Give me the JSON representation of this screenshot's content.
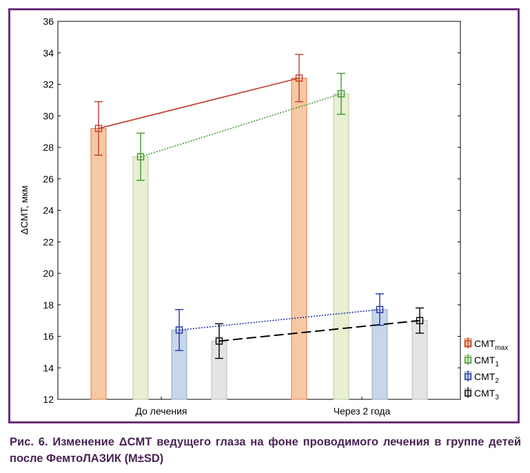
{
  "chart_data": {
    "type": "bar",
    "ylabel": "ΔCMT, мкм",
    "ylim": [
      12,
      36
    ],
    "yticks": [
      12,
      14,
      16,
      18,
      20,
      22,
      24,
      26,
      28,
      30,
      32,
      34,
      36
    ],
    "categories": [
      "До лечения",
      "Через 2 года"
    ],
    "grid": false,
    "legend_position": "right",
    "error_bars": "M±SD",
    "series": [
      {
        "name": "CMT",
        "sub": "max",
        "sub_type": "sub",
        "values": [
          29.2,
          32.4
        ],
        "sd": [
          1.7,
          1.5
        ],
        "bar_color": "#f7c8a4",
        "bar_edge": "#e07a3a",
        "marker_color": "#c0392b",
        "line_style": "solid"
      },
      {
        "name": "CMT",
        "sub": "1",
        "sub_type": "sub",
        "values": [
          27.4,
          31.4
        ],
        "sd": [
          1.5,
          1.3
        ],
        "bar_color": "#e8efd4",
        "bar_edge": "#b8c994",
        "marker_color": "#3a9a2a",
        "line_style": "dotted"
      },
      {
        "name": "CMT",
        "sub": "2",
        "sub_type": "sub",
        "values": [
          16.4,
          17.7
        ],
        "sd": [
          1.3,
          1.0
        ],
        "bar_color": "#c7d6e8",
        "bar_edge": "#8fa9c9",
        "marker_color": "#2232a8",
        "line_style": "dotted"
      },
      {
        "name": "CMT",
        "sub": "3",
        "sub_type": "sub",
        "values": [
          15.7,
          17.0
        ],
        "sd": [
          1.1,
          0.8
        ],
        "bar_color": "#e4e4e4",
        "bar_edge": "#bdbdbd",
        "marker_color": "#000000",
        "line_style": "dashed"
      }
    ]
  },
  "caption": "Рис. 6. Изменение ΔCMT ведущего глаза на фоне проводимого лечения в группе детей после ФемтоЛАЗИК (M±SD)"
}
